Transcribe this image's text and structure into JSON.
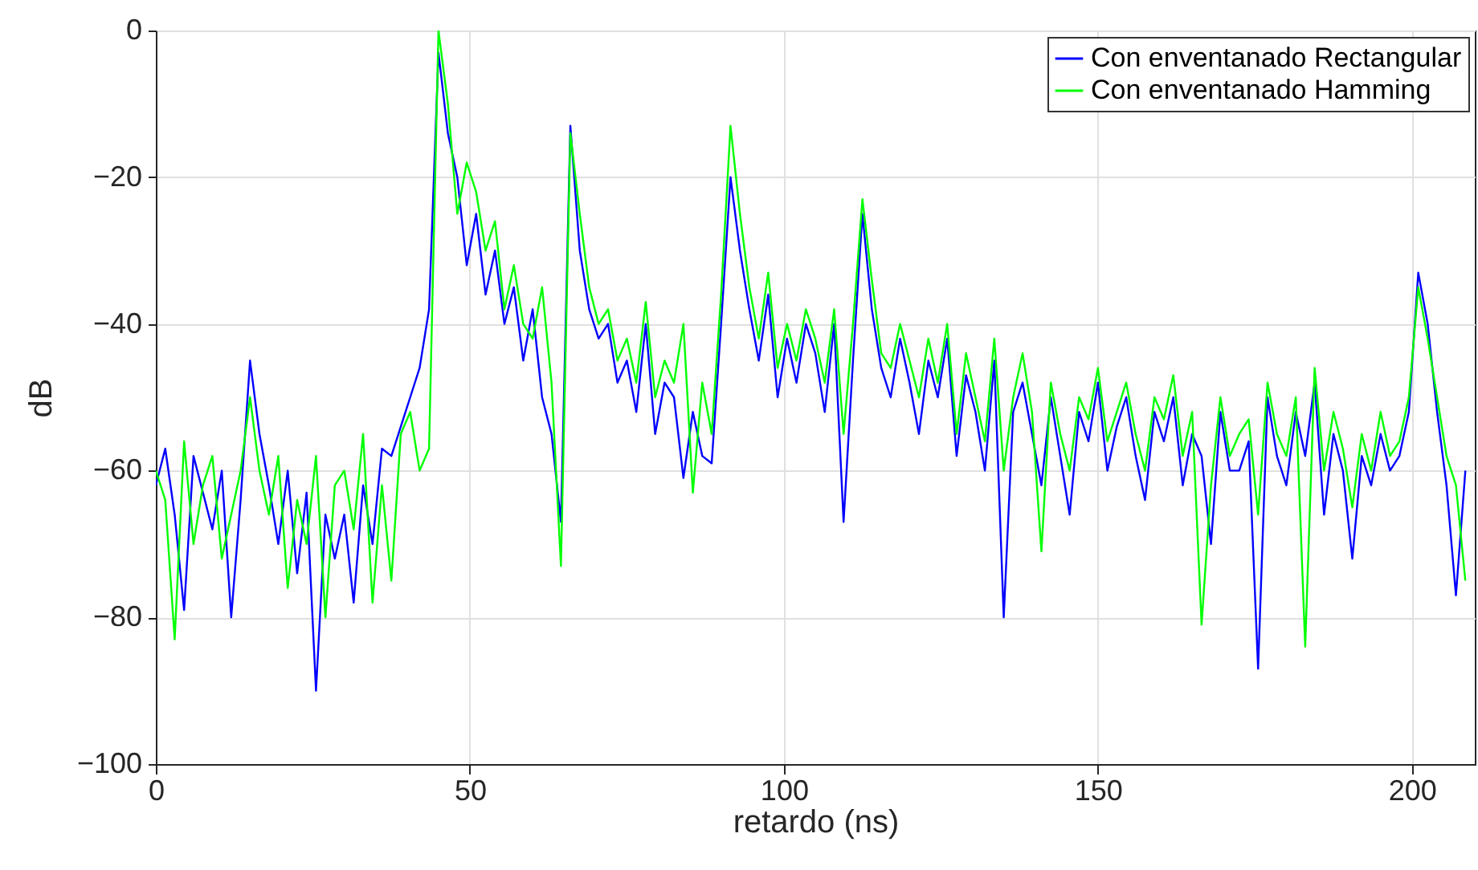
{
  "chart_data": {
    "type": "line",
    "xlabel": "retardo (ns)",
    "ylabel": "dB",
    "xlim": [
      0,
      210
    ],
    "ylim": [
      -100,
      0
    ],
    "xticks": [
      0,
      50,
      100,
      150,
      200
    ],
    "yticks": [
      -100,
      -80,
      -60,
      -40,
      -20,
      0
    ],
    "grid": true,
    "legend": "top right",
    "x": [
      0,
      1.5,
      3,
      4.5,
      6,
      7.5,
      9,
      10.5,
      12,
      13.5,
      15,
      16.5,
      18,
      19.5,
      21,
      22.5,
      24,
      25.5,
      27,
      28.5,
      30,
      31.5,
      33,
      34.5,
      36,
      37.5,
      39,
      40.5,
      42,
      43.5,
      45,
      46.5,
      48,
      49.5,
      51,
      52.5,
      54,
      55.5,
      57,
      58.5,
      60,
      61.5,
      63,
      64.5,
      66,
      67.5,
      69,
      70.5,
      72,
      73.5,
      75,
      76.5,
      78,
      79.5,
      81,
      82.5,
      84,
      85.5,
      87,
      88.5,
      90,
      91.5,
      93,
      94.5,
      96,
      97.5,
      99,
      100.5,
      102,
      103.5,
      105,
      106.5,
      108,
      109.5,
      111,
      112.5,
      114,
      115.5,
      117,
      118.5,
      120,
      121.5,
      123,
      124.5,
      126,
      127.5,
      129,
      130.5,
      132,
      133.5,
      135,
      136.5,
      138,
      139.5,
      141,
      142.5,
      144,
      145.5,
      147,
      148.5,
      150,
      151.5,
      153,
      154.5,
      156,
      157.5,
      159,
      160.5,
      162,
      163.5,
      165,
      166.5,
      168,
      169.5,
      171,
      172.5,
      174,
      175.5,
      177,
      178.5,
      180,
      181.5,
      183,
      184.5,
      186,
      187.5,
      189,
      190.5,
      192,
      193.5,
      195,
      196.5,
      198,
      199.5,
      201,
      202.5,
      204,
      205.5,
      207,
      208.5
    ],
    "series": [
      {
        "name": "Con enventanado Rectangular",
        "color": "#0000ff",
        "values": [
          -62,
          -57,
          -66,
          -79,
          -58,
          -63,
          -68,
          -60,
          -80,
          -64,
          -45,
          -55,
          -62,
          -70,
          -60,
          -74,
          -63,
          -90,
          -66,
          -72,
          -66,
          -78,
          -62,
          -70,
          -57,
          -58,
          -54,
          -50,
          -46,
          -38,
          -3,
          -14,
          -20,
          -32,
          -25,
          -36,
          -30,
          -40,
          -35,
          -45,
          -38,
          -50,
          -55,
          -67,
          -13,
          -30,
          -38,
          -42,
          -40,
          -48,
          -45,
          -52,
          -40,
          -55,
          -48,
          -50,
          -61,
          -52,
          -58,
          -59,
          -40,
          -20,
          -30,
          -38,
          -45,
          -36,
          -50,
          -42,
          -48,
          -40,
          -44,
          -52,
          -40,
          -67,
          -45,
          -25,
          -38,
          -46,
          -50,
          -42,
          -48,
          -55,
          -45,
          -50,
          -42,
          -58,
          -47,
          -52,
          -60,
          -45,
          -80,
          -52,
          -48,
          -55,
          -62,
          -50,
          -58,
          -66,
          -52,
          -56,
          -48,
          -60,
          -54,
          -50,
          -58,
          -64,
          -52,
          -56,
          -50,
          -62,
          -55,
          -58,
          -70,
          -52,
          -60,
          -60,
          -56,
          -87,
          -50,
          -58,
          -62,
          -52,
          -58,
          -48,
          -66,
          -55,
          -60,
          -72,
          -58,
          -62,
          -55,
          -60,
          -58,
          -52,
          -33,
          -40,
          -52,
          -62,
          -77,
          -60
        ]
      },
      {
        "name": "Con enventanado Hamming",
        "color": "#00ff00",
        "values": [
          -60,
          -64,
          -83,
          -56,
          -70,
          -62,
          -58,
          -72,
          -66,
          -60,
          -50,
          -60,
          -66,
          -58,
          -76,
          -64,
          -70,
          -58,
          -80,
          -62,
          -60,
          -68,
          -55,
          -78,
          -62,
          -75,
          -55,
          -52,
          -60,
          -57,
          0,
          -10,
          -25,
          -18,
          -22,
          -30,
          -26,
          -38,
          -32,
          -40,
          -42,
          -35,
          -48,
          -73,
          -14,
          -25,
          -35,
          -40,
          -38,
          -45,
          -42,
          -48,
          -37,
          -50,
          -45,
          -48,
          -40,
          -63,
          -48,
          -55,
          -36,
          -13,
          -25,
          -35,
          -42,
          -33,
          -46,
          -40,
          -45,
          -38,
          -42,
          -48,
          -38,
          -55,
          -40,
          -23,
          -34,
          -44,
          -46,
          -40,
          -45,
          -50,
          -42,
          -48,
          -40,
          -55,
          -44,
          -50,
          -56,
          -42,
          -60,
          -50,
          -44,
          -52,
          -71,
          -48,
          -55,
          -60,
          -50,
          -53,
          -46,
          -56,
          -52,
          -48,
          -55,
          -60,
          -50,
          -53,
          -47,
          -58,
          -52,
          -81,
          -62,
          -50,
          -58,
          -55,
          -53,
          -66,
          -48,
          -55,
          -58,
          -50,
          -84,
          -46,
          -60,
          -52,
          -57,
          -65,
          -55,
          -60,
          -52,
          -58,
          -56,
          -50,
          -35,
          -42,
          -50,
          -58,
          -62,
          -75
        ]
      }
    ]
  }
}
